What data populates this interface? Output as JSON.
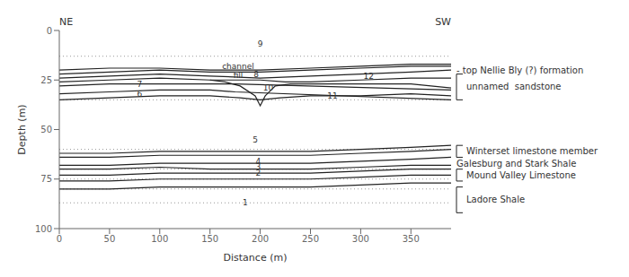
{
  "chart_data": {
    "type": "line",
    "xlabel": "Distance (m)",
    "ylabel": "Depth (m)",
    "xlim": [
      0,
      390
    ],
    "ylim": [
      100,
      0
    ],
    "xticks": [
      0,
      50,
      100,
      150,
      200,
      250,
      300,
      350
    ],
    "yticks": [
      0,
      25,
      50,
      75,
      100
    ],
    "grid": false,
    "top_labels": [
      "NE",
      "SW"
    ],
    "reference_lines": {
      "values": [
        13,
        35,
        60,
        70,
        75,
        80,
        87
      ],
      "color": "#999999",
      "line_style": "dotted"
    },
    "series": [
      {
        "x": [
          0,
          50,
          100,
          150,
          200,
          250,
          300,
          350,
          390
        ],
        "values": [
          20,
          19,
          19,
          20,
          20,
          19,
          18,
          17,
          17
        ],
        "color": "#222222",
        "line_style": "solid"
      },
      {
        "x": [
          0,
          50,
          100,
          150,
          200,
          250,
          300,
          350,
          390
        ],
        "values": [
          22,
          21,
          20,
          21,
          21,
          20,
          19,
          18,
          18
        ],
        "color": "#222222",
        "line_style": "solid"
      },
      {
        "x": [
          0,
          50,
          100,
          150,
          200,
          250,
          300,
          350,
          390
        ],
        "values": [
          24,
          23,
          22,
          23,
          24,
          23,
          22,
          21,
          20
        ],
        "color": "#222222",
        "line_style": "solid"
      },
      {
        "x": [
          0,
          50,
          100,
          150,
          175,
          200,
          225,
          250,
          300,
          350,
          390
        ],
        "values": [
          26,
          25,
          24,
          25,
          25,
          25,
          26,
          26,
          25,
          24,
          24
        ],
        "color": "#222222",
        "line_style": "solid"
      },
      {
        "x": [
          0,
          50,
          100,
          150,
          175,
          390
        ],
        "values": [
          28,
          27,
          27,
          27,
          27,
          30
        ],
        "color": "#222222",
        "line_style": "solid"
      },
      {
        "x": [
          0,
          50,
          100,
          150,
          175,
          390
        ],
        "values": [
          32,
          31,
          30,
          30,
          31,
          35
        ],
        "color": "#222222",
        "line_style": "solid"
      },
      {
        "x": [
          150,
          165,
          180,
          195,
          200,
          205,
          215,
          230,
          250,
          300,
          350,
          390
        ],
        "values": [
          25,
          26,
          28,
          33,
          38,
          33,
          28,
          27,
          27,
          27,
          27,
          29
        ],
        "color": "#222222",
        "line_style": "solid"
      },
      {
        "x": [
          0,
          50,
          100,
          150,
          180,
          200,
          220,
          250,
          300,
          350,
          390
        ],
        "values": [
          35,
          34,
          33,
          33,
          34,
          35,
          34,
          33,
          33,
          32,
          33
        ],
        "color": "#222222",
        "line_style": "solid"
      },
      {
        "x": [
          0,
          50,
          100,
          150,
          200,
          250,
          300,
          350,
          390
        ],
        "values": [
          62,
          62,
          61,
          61,
          61,
          61,
          60,
          59,
          58
        ],
        "color": "#222222",
        "line_style": "solid"
      },
      {
        "x": [
          0,
          50,
          100,
          150,
          200,
          250,
          300,
          350,
          390
        ],
        "values": [
          64,
          64,
          63,
          63,
          63,
          63,
          62,
          61,
          60
        ],
        "color": "#222222",
        "line_style": "solid"
      },
      {
        "x": [
          0,
          50,
          100,
          150,
          200,
          250,
          300,
          350,
          390
        ],
        "values": [
          68,
          68,
          67,
          67,
          67,
          67,
          66,
          65,
          64
        ],
        "color": "#222222",
        "line_style": "solid"
      },
      {
        "x": [
          0,
          50,
          100,
          150,
          200,
          250,
          300,
          350,
          390
        ],
        "values": [
          70,
          70,
          69,
          70,
          70,
          70,
          69,
          68,
          68
        ],
        "color": "#222222",
        "line_style": "solid"
      },
      {
        "x": [
          0,
          50,
          100,
          150,
          200,
          250,
          300,
          350,
          390
        ],
        "values": [
          73,
          73,
          72,
          72,
          72,
          72,
          71,
          70,
          70
        ],
        "color": "#222222",
        "line_style": "solid"
      },
      {
        "x": [
          0,
          50,
          100,
          150,
          200,
          250,
          300,
          350,
          390
        ],
        "values": [
          76,
          76,
          75,
          75,
          75,
          75,
          74,
          73,
          73
        ],
        "color": "#222222",
        "line_style": "solid"
      },
      {
        "x": [
          0,
          50,
          100,
          150,
          200,
          250,
          300,
          350,
          390
        ],
        "values": [
          80,
          80,
          79,
          79,
          79,
          79,
          78,
          77,
          77
        ],
        "color": "#222222",
        "line_style": "solid"
      }
    ],
    "annotations": [
      {
        "text": "9",
        "x": 200,
        "y": 7
      },
      {
        "text": "8",
        "x": 196,
        "y": 22
      },
      {
        "text": "7",
        "x": 80,
        "y": 27
      },
      {
        "text": "6",
        "x": 80,
        "y": 32
      },
      {
        "text": "10",
        "x": 208,
        "y": 29
      },
      {
        "text": "11",
        "x": 272,
        "y": 33
      },
      {
        "text": "12",
        "x": 308,
        "y": 23
      },
      {
        "text": "5",
        "x": 195,
        "y": 55
      },
      {
        "text": "4",
        "x": 198,
        "y": 66
      },
      {
        "text": "3",
        "x": 198,
        "y": 69
      },
      {
        "text": "2",
        "x": 198,
        "y": 72
      },
      {
        "text": "1",
        "x": 185,
        "y": 87
      }
    ],
    "channel_fill_label": {
      "text": "channel\nfill",
      "x": 178,
      "y": 25
    },
    "right_labels": [
      {
        "text": "- top Nellie Bly (?) formation",
        "y": 20
      },
      {
        "text": "unnamed  sandstone",
        "bracket": [
          22,
          35
        ]
      },
      {
        "text": "Winterset limestone member",
        "bracket": [
          58,
          64
        ]
      },
      {
        "text": "Galesburg and Stark Shale",
        "y": 67
      },
      {
        "text": "Mound Valley Limestone",
        "bracket": [
          70,
          76
        ]
      },
      {
        "text": "Ladore Shale",
        "bracket": [
          79,
          92
        ]
      }
    ]
  }
}
